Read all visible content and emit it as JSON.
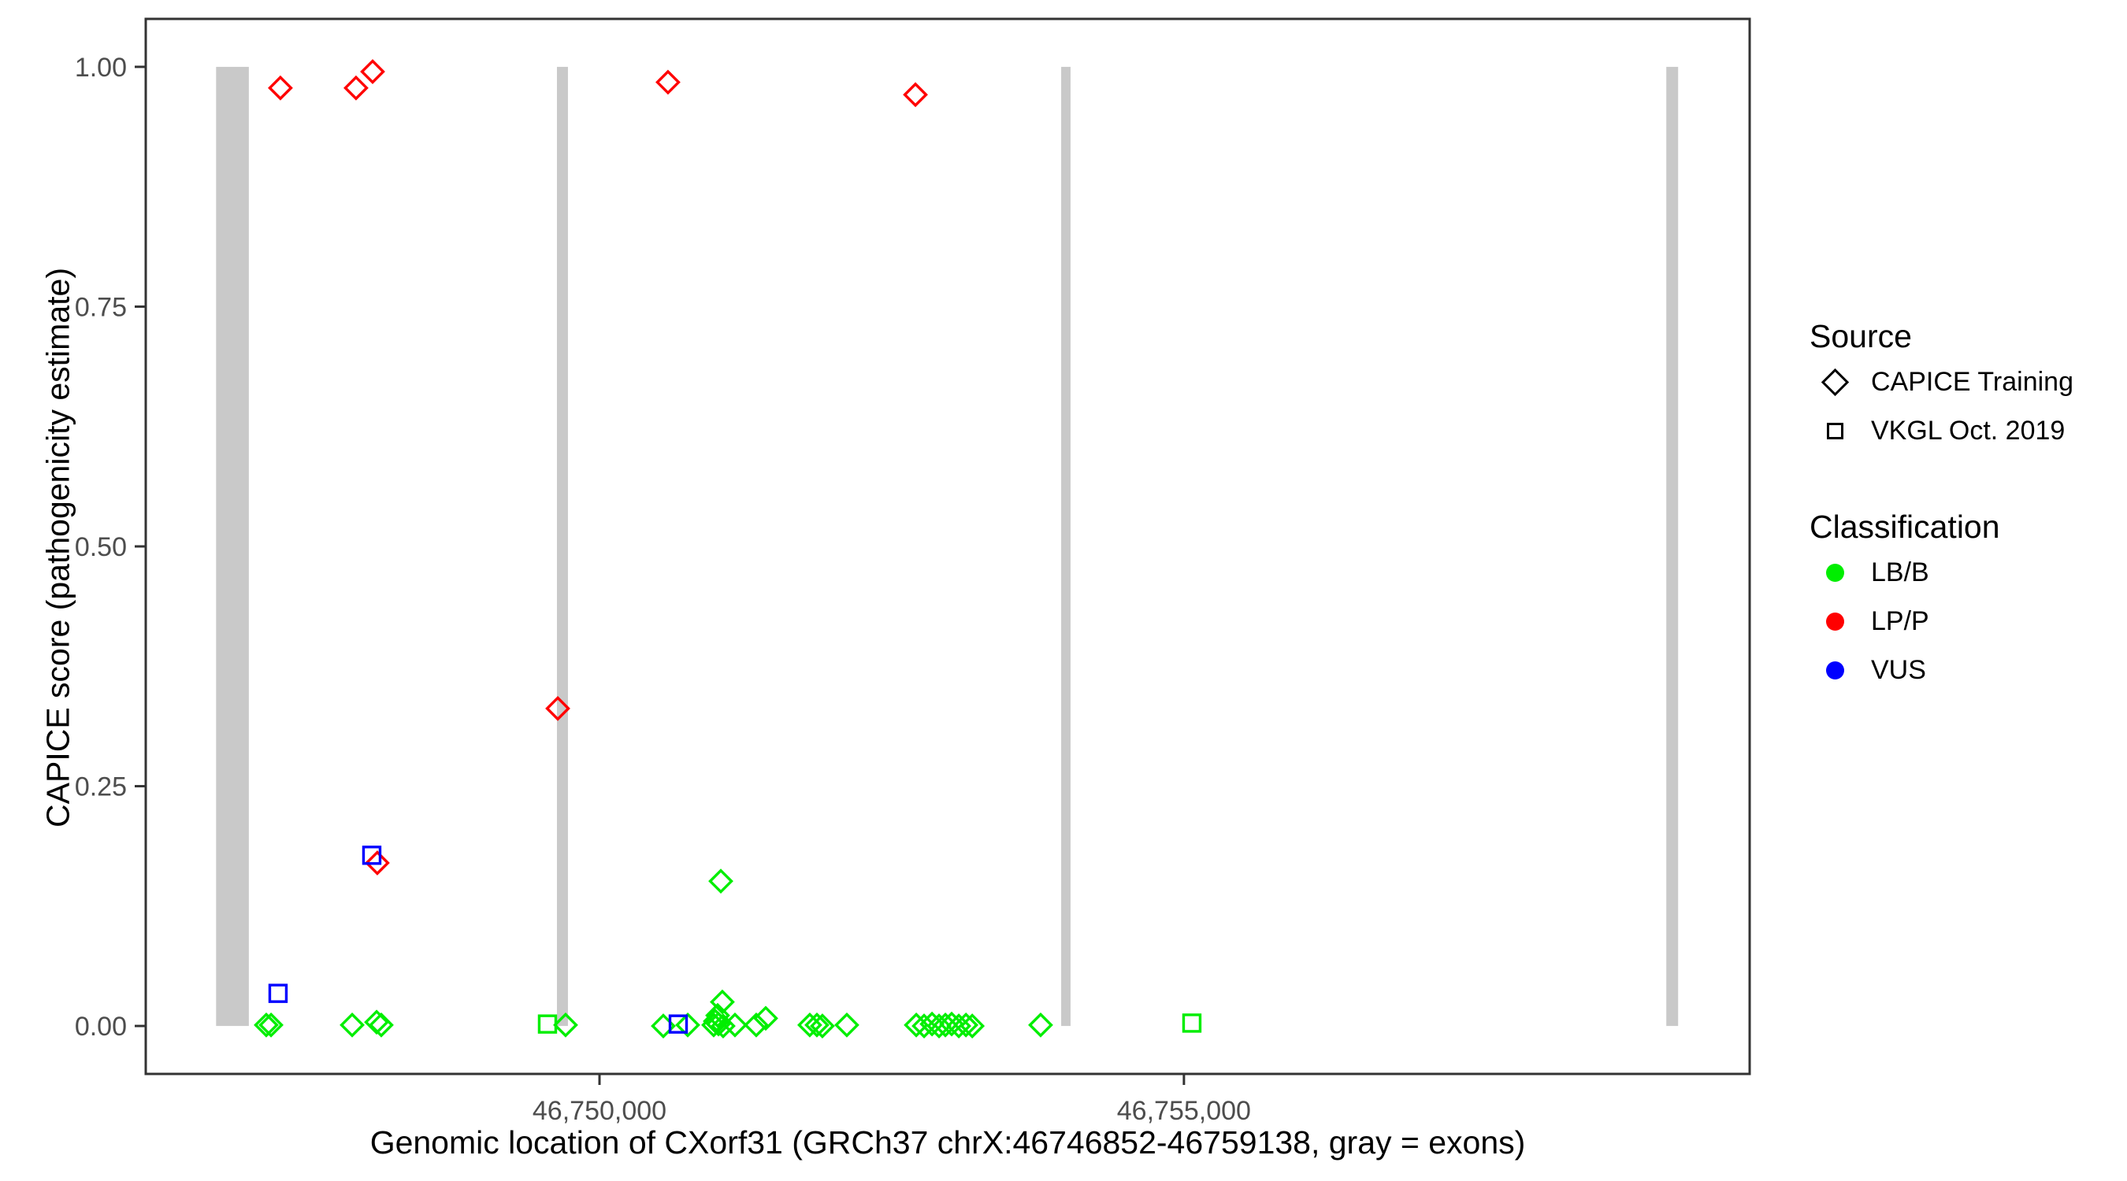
{
  "figure": {
    "x_axis_label": "Genomic location of CXorf31 (GRCh37 chrX:46746852-46759138, gray = exons)",
    "y_axis_label": "CAPICE score (pathogenicity estimate)"
  },
  "legend": {
    "source": {
      "title": "Source",
      "items": [
        {
          "label": "CAPICE Training",
          "marker": "diamond"
        },
        {
          "label": "VKGL Oct. 2019",
          "marker": "square"
        }
      ]
    },
    "classification": {
      "title": "Classification",
      "items": [
        {
          "label": "LB/B",
          "color": "#00EE00"
        },
        {
          "label": "LP/P",
          "color": "#FF0000"
        },
        {
          "label": "VUS",
          "color": "#0000FF"
        }
      ]
    }
  },
  "chart_data": {
    "type": "scatter",
    "title": "",
    "x_axis": {
      "label": "Genomic location of CXorf31 (GRCh37 chrX:46746852-46759138, gray = exons)",
      "domain": [
        46746118,
        46759840
      ],
      "ticks": [
        {
          "value": 46750000,
          "label": "46,750,000"
        },
        {
          "value": 46755000,
          "label": "46,755,000"
        }
      ]
    },
    "y_axis": {
      "label": "CAPICE score (pathogenicity estimate)",
      "domain": [
        -0.05,
        1.05
      ],
      "ticks": [
        {
          "value": 0.0,
          "label": "0.00"
        },
        {
          "value": 0.25,
          "label": "0.25"
        },
        {
          "value": 0.5,
          "label": "0.50"
        },
        {
          "value": 0.75,
          "label": "0.75"
        },
        {
          "value": 1.0,
          "label": "1.00"
        }
      ]
    },
    "exon_color": "#C9C9C9",
    "exons": [
      {
        "start": 46746720,
        "end": 46747000
      },
      {
        "start": 46749636,
        "end": 46749730
      },
      {
        "start": 46753950,
        "end": 46754030
      },
      {
        "start": 46759127,
        "end": 46759228
      }
    ],
    "series": [
      {
        "name": "CAPICE Training / LP/P",
        "source": "CAPICE Training",
        "classification": "LP/P",
        "shape": "diamond",
        "color": "#FF0000",
        "points": [
          {
            "x": 46747270,
            "y": 0.978
          },
          {
            "x": 46747917,
            "y": 0.978
          },
          {
            "x": 46748059,
            "y": 0.995
          },
          {
            "x": 46748099,
            "y": 0.17
          },
          {
            "x": 46749643,
            "y": 0.331
          },
          {
            "x": 46750586,
            "y": 0.984
          },
          {
            "x": 46752703,
            "y": 0.971
          }
        ]
      },
      {
        "name": "CAPICE Training / LB/B",
        "source": "CAPICE Training",
        "classification": "LB/B",
        "shape": "diamond",
        "color": "#00EE00",
        "points": [
          {
            "x": 46747149,
            "y": 0.001
          },
          {
            "x": 46747190,
            "y": 0.001
          },
          {
            "x": 46747884,
            "y": 0.001
          },
          {
            "x": 46748093,
            "y": 0.004
          },
          {
            "x": 46748133,
            "y": 0.001
          },
          {
            "x": 46749710,
            "y": 0.001
          },
          {
            "x": 46750546,
            "y": 0.0
          },
          {
            "x": 46750755,
            "y": 0.001
          },
          {
            "x": 46750977,
            "y": 0.001
          },
          {
            "x": 46750991,
            "y": 0.005
          },
          {
            "x": 46751011,
            "y": 0.011
          },
          {
            "x": 46751018,
            "y": 0.002
          },
          {
            "x": 46751038,
            "y": 0.151
          },
          {
            "x": 46751051,
            "y": 0.025
          },
          {
            "x": 46751058,
            "y": 0.0
          },
          {
            "x": 46751159,
            "y": 0.001
          },
          {
            "x": 46751341,
            "y": 0.001
          },
          {
            "x": 46751422,
            "y": 0.008
          },
          {
            "x": 46751799,
            "y": 0.001
          },
          {
            "x": 46751860,
            "y": 0.001
          },
          {
            "x": 46751907,
            "y": 0.0
          },
          {
            "x": 46752116,
            "y": 0.001
          },
          {
            "x": 46752710,
            "y": 0.001
          },
          {
            "x": 46752777,
            "y": 0.0
          },
          {
            "x": 46752845,
            "y": 0.002
          },
          {
            "x": 46752905,
            "y": 0.0
          },
          {
            "x": 46752959,
            "y": 0.001
          },
          {
            "x": 46753013,
            "y": 0.002
          },
          {
            "x": 46753074,
            "y": 0.0
          },
          {
            "x": 46753135,
            "y": 0.001
          },
          {
            "x": 46753189,
            "y": 0.0
          },
          {
            "x": 46753774,
            "y": 0.001
          }
        ]
      },
      {
        "name": "VKGL Oct. 2019 / LB/B",
        "source": "VKGL Oct. 2019",
        "classification": "LB/B",
        "shape": "square",
        "color": "#00EE00",
        "points": [
          {
            "x": 46749555,
            "y": 0.002
          },
          {
            "x": 46755068,
            "y": 0.003
          }
        ]
      },
      {
        "name": "VKGL Oct. 2019 / VUS",
        "source": "VKGL Oct. 2019",
        "classification": "VUS",
        "shape": "square",
        "color": "#0000FF",
        "points": [
          {
            "x": 46747250,
            "y": 0.034
          },
          {
            "x": 46748052,
            "y": 0.178
          },
          {
            "x": 46750674,
            "y": 0.002
          }
        ]
      }
    ]
  }
}
